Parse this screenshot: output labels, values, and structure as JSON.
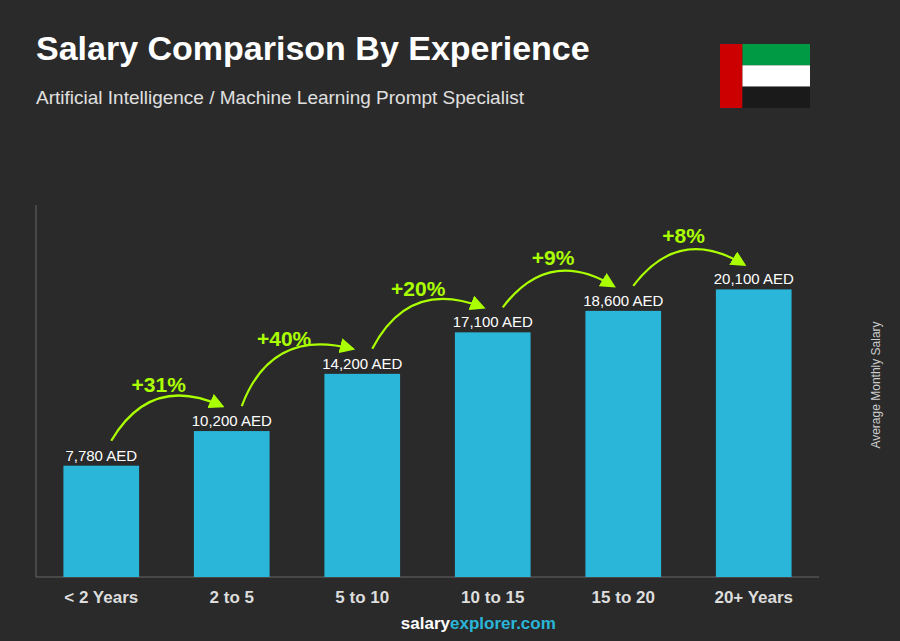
{
  "chart_data": {
    "type": "bar",
    "title": "Salary Comparison By Experience",
    "subtitle": "Artificial Intelligence / Machine Learning Prompt Specialist",
    "ylabel": "Average Monthly Salary",
    "categories": [
      "< 2 Years",
      "2 to 5",
      "5 to 10",
      "10 to 15",
      "15 to 20",
      "20+ Years"
    ],
    "values": [
      7780,
      10200,
      14200,
      17100,
      18600,
      20100
    ],
    "value_labels": [
      "7,780 AED",
      "10,200 AED",
      "14,200 AED",
      "17,100 AED",
      "18,600 AED",
      "20,100 AED"
    ],
    "data_labels": true,
    "change_labels": [
      null,
      "+31%",
      "+40%",
      "+20%",
      "+9%",
      "+8%"
    ],
    "change_color": "#aaff00",
    "color": "#29b6d8",
    "ylim": [
      0,
      26000
    ],
    "tick_labels": false,
    "grid": false,
    "watermark": [
      "salary",
      "explorer.com"
    ],
    "flag_colors": [
      "#CC0001",
      "#009A44",
      "#FFFFFF",
      "#1a1a1a"
    ]
  }
}
